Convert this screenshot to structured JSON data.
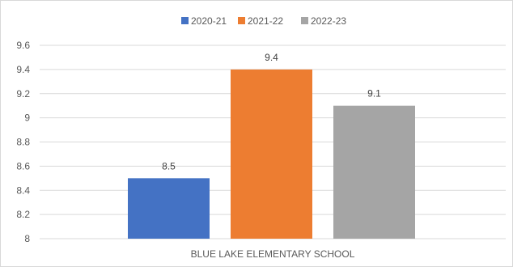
{
  "chart_data": {
    "type": "bar",
    "categories": [
      "BLUE LAKE ELEMENTARY SCHOOL"
    ],
    "series": [
      {
        "name": "2020-21",
        "values": [
          8.5
        ],
        "color": "#4472C4"
      },
      {
        "name": "2021-22",
        "values": [
          9.4
        ],
        "color": "#ED7D31"
      },
      {
        "name": "2022-23",
        "values": [
          9.1
        ],
        "color": "#A5A5A5"
      }
    ],
    "data_labels": [
      "8.5",
      "9.4",
      "9.1"
    ],
    "ylim": [
      8,
      9.6
    ],
    "yticks": [
      "8",
      "8.2",
      "8.4",
      "8.6",
      "8.8",
      "9",
      "9.2",
      "9.4",
      "9.6"
    ],
    "title": "",
    "xlabel": "",
    "ylabel": "",
    "grid": true,
    "legend_position": "top"
  }
}
